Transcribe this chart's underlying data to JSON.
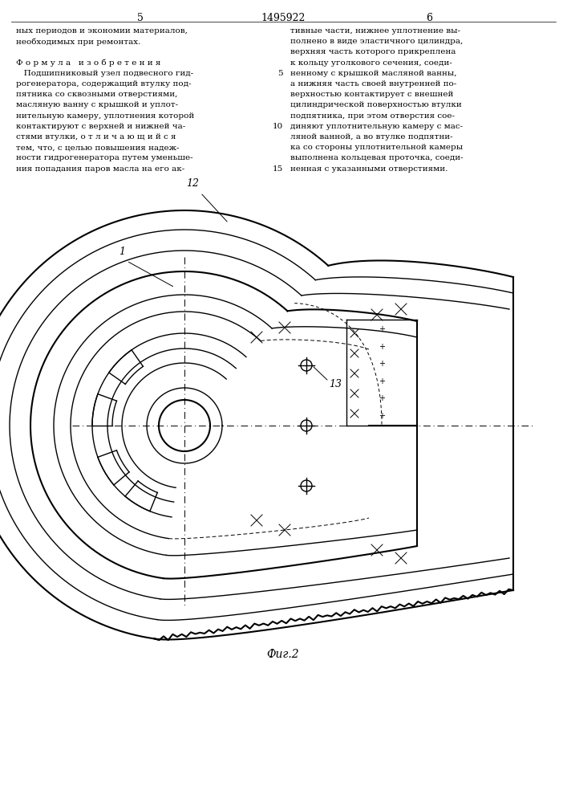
{
  "title": "1495922",
  "page_left": "5",
  "page_right": "6",
  "fig_caption": "Фиг.2",
  "bg_color": "#ffffff",
  "draw_color": "#000000",
  "left_col_lines": [
    "ных периодов и экономии материалов,",
    "необходимых при ремонтах.",
    "",
    "Ф о р м у л а   и з о б р е т е н и я",
    "   Подшипниковый узел подвесного гид-",
    "рогенератора, содержащий втулку под-",
    "пятника со сквозными отверстиями,",
    "масляную ванну с крышкой и уплот-",
    "нительную камеру, уплотнения которой",
    "контактируют с верхней и нижней ча-",
    "стями втулки, о т л и ч а ю щ и й с я",
    "тем, что, с целью повышения надеж-",
    "ности гидрогенератора путем уменьше-",
    "ния попадания паров масла на его ак-"
  ],
  "right_col_lines": [
    "тивные части, нижнее уплотнение вы-",
    "полнено в виде эластичного цилиндра,",
    "верхняя часть которого прикреплена",
    "к кольцу уголкового сечения, соеди-",
    "ненному с крышкой масляной ванны,",
    "а нижняя часть своей внутренней по-",
    "верхностью контактирует с внешней",
    "цилиндрической поверхностью втулки",
    "подпятника, при этом отверстия сое-",
    "диняют уплотнительную камеру с мас-",
    "ляной ванной, а во втулке подпятни-",
    "ка со стороны уплотнительной камеры",
    "выполнена кольцевая проточка, соеди-",
    "ненная с указанными отверстиями."
  ],
  "fig_width": 7.07,
  "fig_height": 10.0
}
